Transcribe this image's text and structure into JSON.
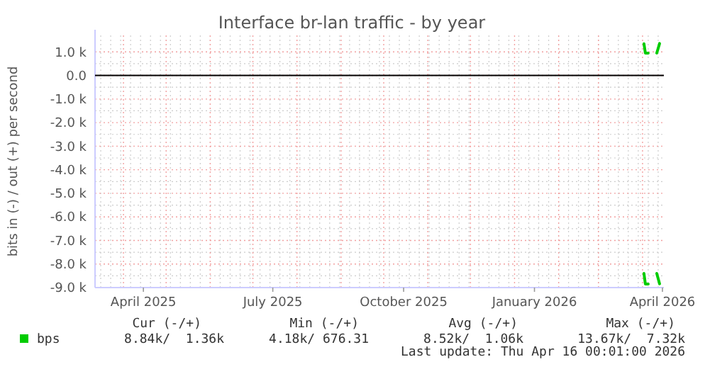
{
  "chart_data": {
    "type": "line",
    "title": "Interface br-lan traffic - by year",
    "ylabel": "bits in (-) / out (+) per second",
    "xlim": [
      "2025-03-12",
      "2026-04-16"
    ],
    "xticks": [
      {
        "value": "2025-04-15",
        "label": "April 2025"
      },
      {
        "value": "2025-07-15",
        "label": "July 2025"
      },
      {
        "value": "2025-10-15",
        "label": "October 2025"
      },
      {
        "value": "2026-01-15",
        "label": "January 2026"
      },
      {
        "value": "2026-04-15",
        "label": "April 2026"
      }
    ],
    "ylim": [
      -9000,
      1700
    ],
    "yticks": [
      {
        "value": 1000,
        "label": "1.0 k"
      },
      {
        "value": 0,
        "label": "0.0"
      },
      {
        "value": -1000,
        "label": "-1.0 k"
      },
      {
        "value": -2000,
        "label": "-2.0 k"
      },
      {
        "value": -3000,
        "label": "-3.0 k"
      },
      {
        "value": -4000,
        "label": "-4.0 k"
      },
      {
        "value": -5000,
        "label": "-5.0 k"
      },
      {
        "value": -6000,
        "label": "-6.0 k"
      },
      {
        "value": -7000,
        "label": "-7.0 k"
      },
      {
        "value": -8000,
        "label": "-8.0 k"
      },
      {
        "value": -9000,
        "label": "-9.0 k"
      }
    ],
    "series": [
      {
        "name": "bps",
        "color": "#00cc00",
        "x": [
          "2026-04-02",
          "2026-04-03",
          "2026-04-05",
          "2026-04-08",
          "2026-04-11",
          "2026-04-13"
        ],
        "values": [
          1350,
          950,
          950,
          null,
          950,
          1360
        ]
      },
      {
        "color": "#00cc00",
        "x": [
          "2026-04-02",
          "2026-04-03",
          "2026-04-05",
          "2026-04-08",
          "2026-04-11",
          "2026-04-13"
        ],
        "values": [
          -8400,
          -8850,
          -8850,
          null,
          -8400,
          -8840
        ]
      }
    ],
    "ref_lines": [
      {
        "axis": "y",
        "value": 0,
        "color": "#000000"
      }
    ],
    "grid": true,
    "legend": "bottom left",
    "annotations": [
      "Cur (-/+)",
      "Min (-/+)",
      "Avg (-/+)",
      "Max (-/+)",
      "8.84k/  1.36k",
      "4.18k/ 676.31",
      "8.52k/  1.06k",
      "13.67k/  7.32k",
      "Last update: Thu Apr 16 00:01:00 2026"
    ]
  }
}
